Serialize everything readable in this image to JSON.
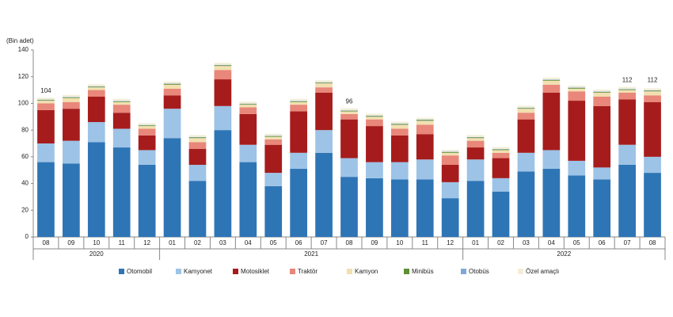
{
  "chart_data": {
    "type": "stacked-bar",
    "y_label": "(Bin adet)",
    "groups": [
      {
        "name": "2020",
        "categories": [
          "08",
          "09",
          "10",
          "11",
          "12"
        ]
      },
      {
        "name": "2021",
        "categories": [
          "01",
          "02",
          "03",
          "04",
          "05",
          "06",
          "07",
          "08",
          "09",
          "10",
          "11",
          "12"
        ]
      },
      {
        "name": "2022",
        "categories": [
          "01",
          "02",
          "03",
          "04",
          "05",
          "06",
          "07",
          "08"
        ]
      }
    ],
    "series": [
      {
        "name": "Otomobil",
        "color": "#2e75b6",
        "values": [
          56,
          55,
          71,
          67,
          54,
          74,
          42,
          80,
          56,
          38,
          51,
          63,
          45,
          44,
          43,
          43,
          29,
          42,
          34,
          49,
          51,
          46,
          43,
          54,
          48
        ]
      },
      {
        "name": "Kamyonet",
        "color": "#9dc3e6",
        "values": [
          14,
          17,
          15,
          14,
          11,
          22,
          12,
          18,
          13,
          10,
          12,
          17,
          14,
          12,
          13,
          15,
          12,
          16,
          10,
          14,
          14,
          11,
          9,
          15,
          12
        ]
      },
      {
        "name": "Motosiklet",
        "color": "#a61c1c",
        "values": [
          25,
          24,
          19,
          12,
          11,
          10,
          12,
          20,
          23,
          21,
          31,
          28,
          29,
          27,
          20,
          19,
          13,
          9,
          15,
          25,
          43,
          45,
          46,
          34,
          41
        ]
      },
      {
        "name": "Traktör",
        "color": "#e8877a",
        "values": [
          5,
          5,
          5,
          6,
          5,
          5,
          5,
          7,
          5,
          4,
          5,
          4,
          4,
          5,
          5,
          7,
          7,
          5,
          4,
          5,
          6,
          7,
          7,
          5,
          5
        ]
      },
      {
        "name": "Kamyon",
        "color": "#f2dfb0",
        "values": [
          2,
          3,
          2,
          2,
          2,
          3,
          3,
          3,
          2,
          2,
          2,
          3,
          2,
          2,
          3,
          3,
          2,
          2,
          2,
          3,
          3,
          2,
          3,
          2,
          3
        ]
      },
      {
        "name": "Minibüs",
        "color": "#5f8f35",
        "values": [
          0.5,
          0.5,
          0.5,
          0.5,
          0.5,
          0.5,
          0.5,
          0.5,
          0.5,
          0.5,
          0.5,
          0.5,
          0.5,
          0.5,
          0.5,
          0.5,
          0.5,
          0.5,
          0.5,
          0.5,
          0.5,
          0.5,
          0.5,
          0.5,
          0.5
        ]
      },
      {
        "name": "Otobüs",
        "color": "#7fa8d6",
        "values": [
          0.3,
          0.3,
          0.3,
          0.3,
          0.3,
          0.3,
          0.3,
          0.3,
          0.3,
          0.3,
          0.3,
          0.3,
          0.3,
          0.3,
          0.3,
          0.3,
          0.3,
          0.3,
          0.3,
          0.3,
          0.3,
          0.3,
          0.3,
          0.3,
          0.3
        ]
      },
      {
        "name": "Özel amaçlı",
        "color": "#f3eed8",
        "values": [
          1.5,
          1.5,
          1.5,
          1.5,
          1.5,
          1.5,
          1.5,
          1.5,
          1.5,
          1.5,
          1.5,
          1.5,
          1.5,
          1.5,
          1.5,
          1.5,
          1.5,
          1.5,
          1.5,
          1.5,
          1.5,
          1.5,
          1.5,
          1.5,
          1.5
        ]
      }
    ],
    "ylim": [
      0,
      140
    ],
    "yticks": [
      0,
      20,
      40,
      60,
      80,
      100,
      120,
      140
    ],
    "annotations": [
      {
        "index": 0,
        "value": 104
      },
      {
        "index": 12,
        "value": 96
      },
      {
        "index": 23,
        "value": 112
      },
      {
        "index": 24,
        "value": 112
      }
    ]
  }
}
